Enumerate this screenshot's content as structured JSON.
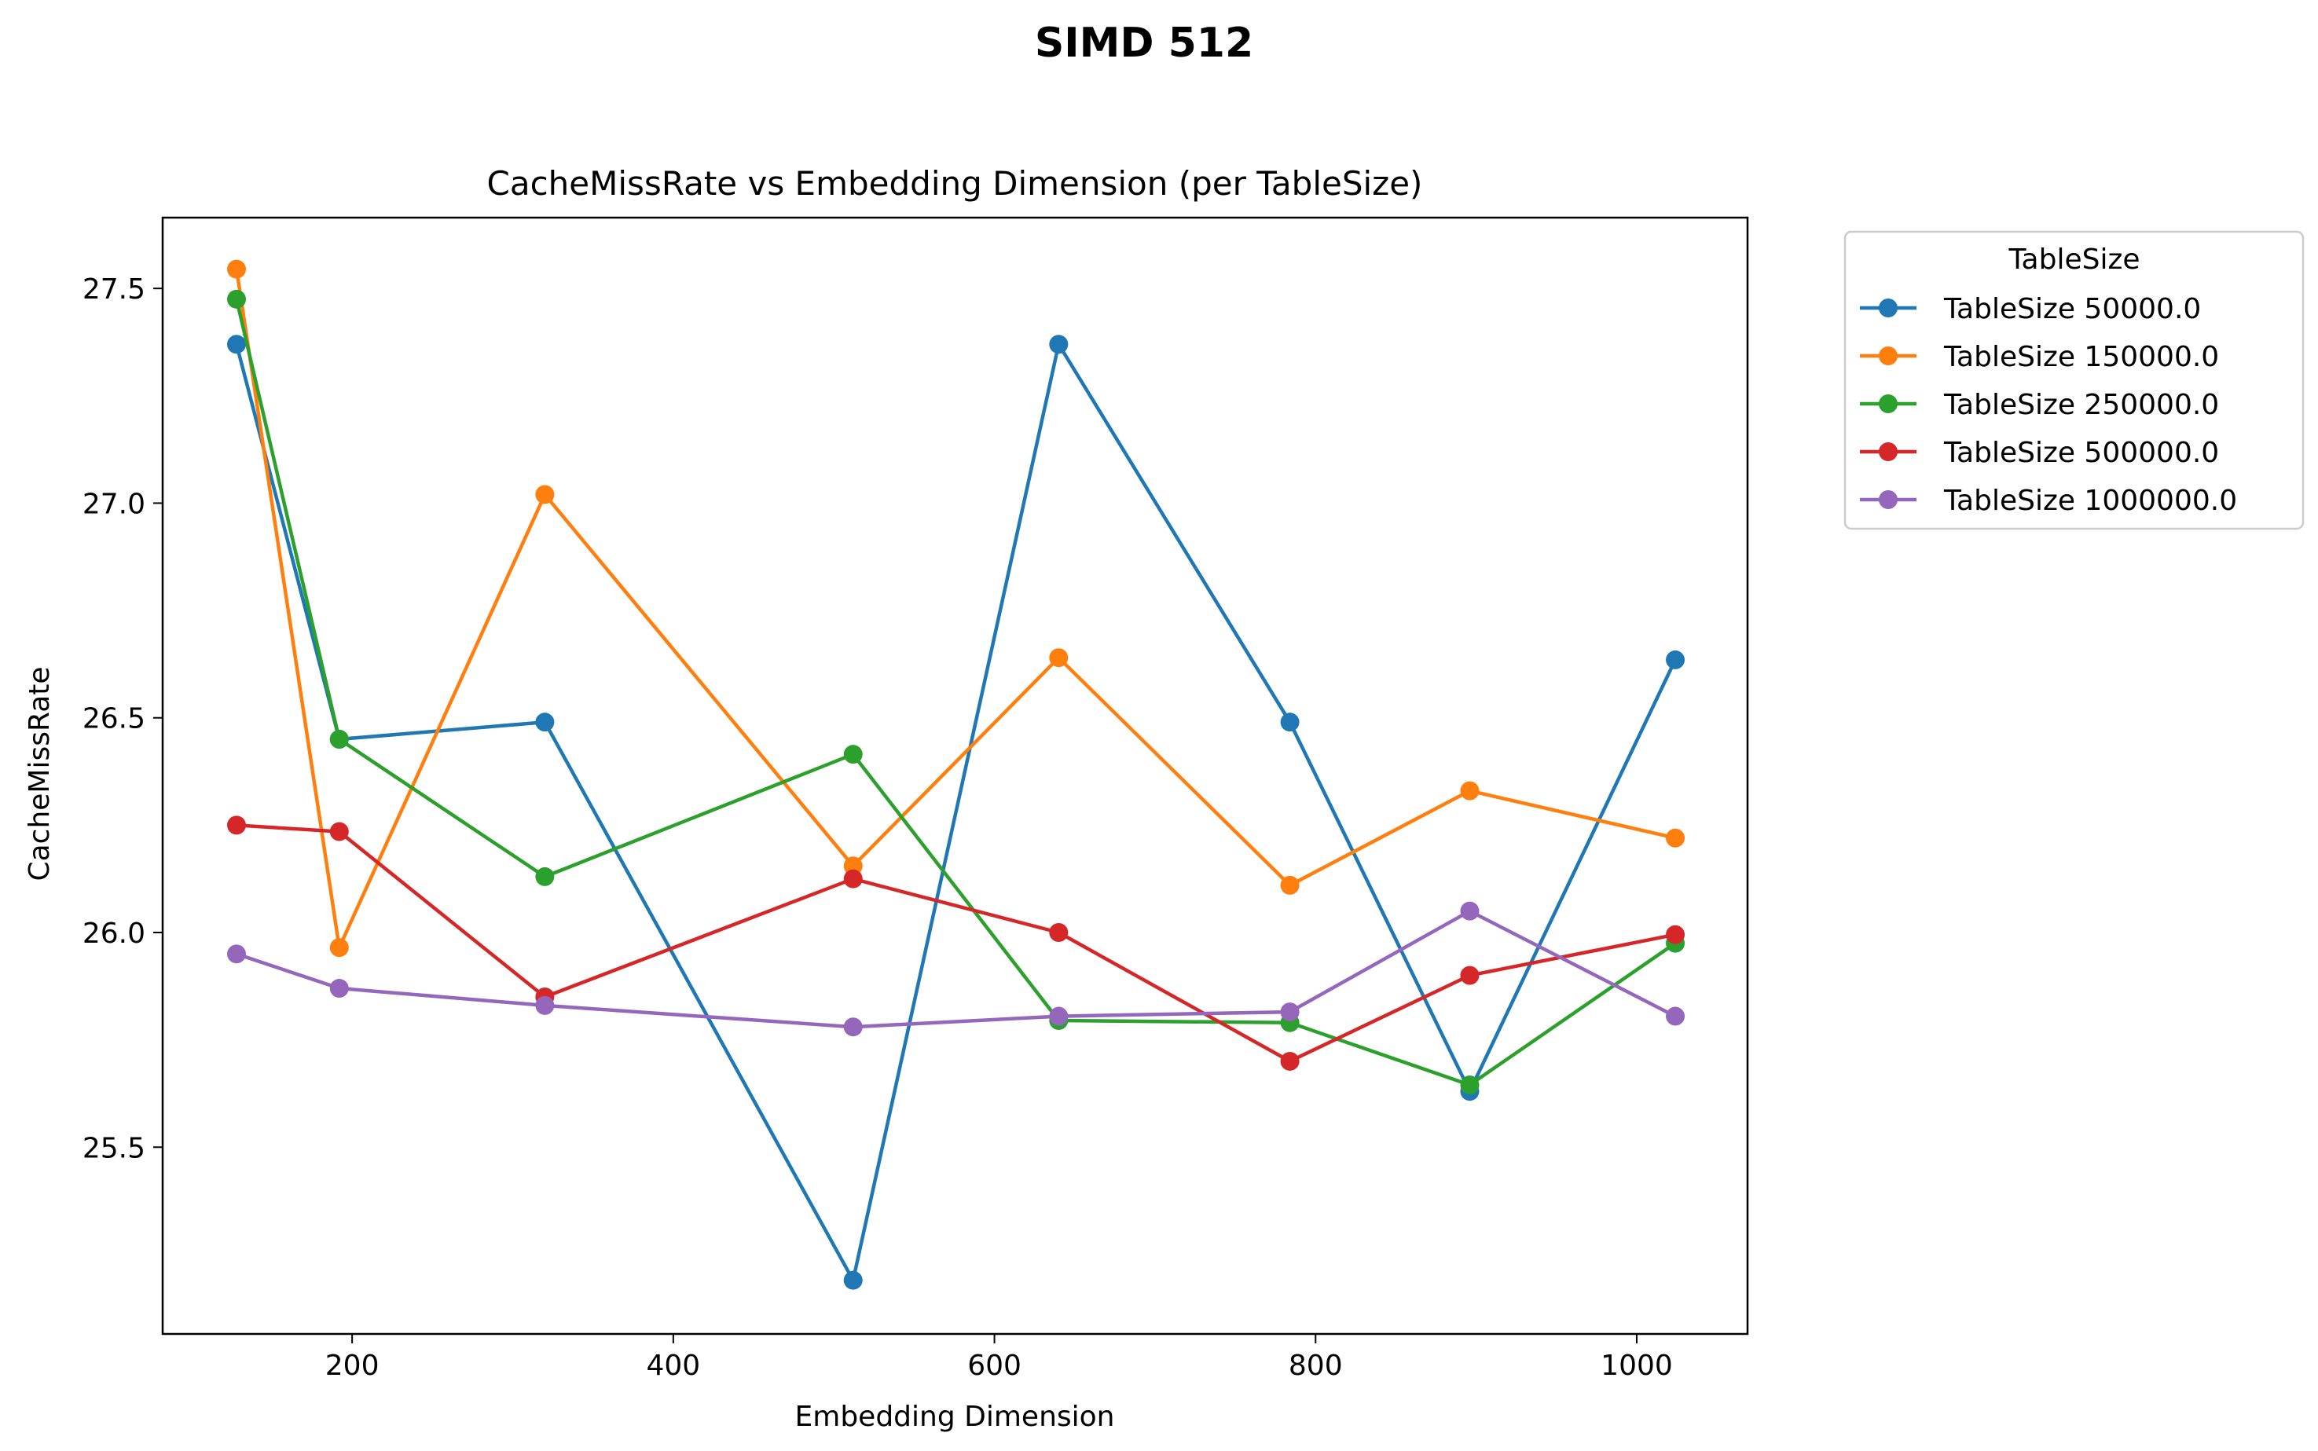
{
  "figure_title": "SIMD 512",
  "chart_data": {
    "type": "line",
    "title": "CacheMissRate vs Embedding Dimension (per TableSize)",
    "xlabel": "Embedding Dimension",
    "ylabel": "CacheMissRate",
    "xlim": [
      82,
      1069
    ],
    "ylim": [
      25.065,
      27.665
    ],
    "xticks": [
      200,
      400,
      600,
      800,
      1000
    ],
    "yticks": [
      25.5,
      26.0,
      26.5,
      27.0,
      27.5
    ],
    "grid": false,
    "legend": {
      "title": "TableSize",
      "placement": "outside-top-right"
    },
    "x": [
      128,
      192,
      320,
      512,
      640,
      784,
      896,
      1024
    ],
    "series": [
      {
        "name": "TableSize 50000.0",
        "color": "#1f77b4",
        "values": [
          27.37,
          26.45,
          26.49,
          25.19,
          27.37,
          26.49,
          25.63,
          26.635
        ]
      },
      {
        "name": "TableSize 150000.0",
        "color": "#ff7f0e",
        "values": [
          27.545,
          25.965,
          27.02,
          26.155,
          26.64,
          26.11,
          26.33,
          26.22
        ]
      },
      {
        "name": "TableSize 250000.0",
        "color": "#2ca02c",
        "values": [
          27.475,
          26.45,
          26.13,
          26.415,
          25.795,
          25.79,
          25.645,
          25.975
        ]
      },
      {
        "name": "TableSize 500000.0",
        "color": "#d62728",
        "values": [
          26.25,
          26.235,
          25.85,
          26.125,
          26.0,
          25.7,
          25.9,
          25.995
        ]
      },
      {
        "name": "TableSize 1000000.0",
        "color": "#9467bd",
        "values": [
          25.95,
          25.87,
          25.83,
          25.78,
          25.805,
          25.815,
          26.05,
          25.805
        ]
      }
    ]
  }
}
